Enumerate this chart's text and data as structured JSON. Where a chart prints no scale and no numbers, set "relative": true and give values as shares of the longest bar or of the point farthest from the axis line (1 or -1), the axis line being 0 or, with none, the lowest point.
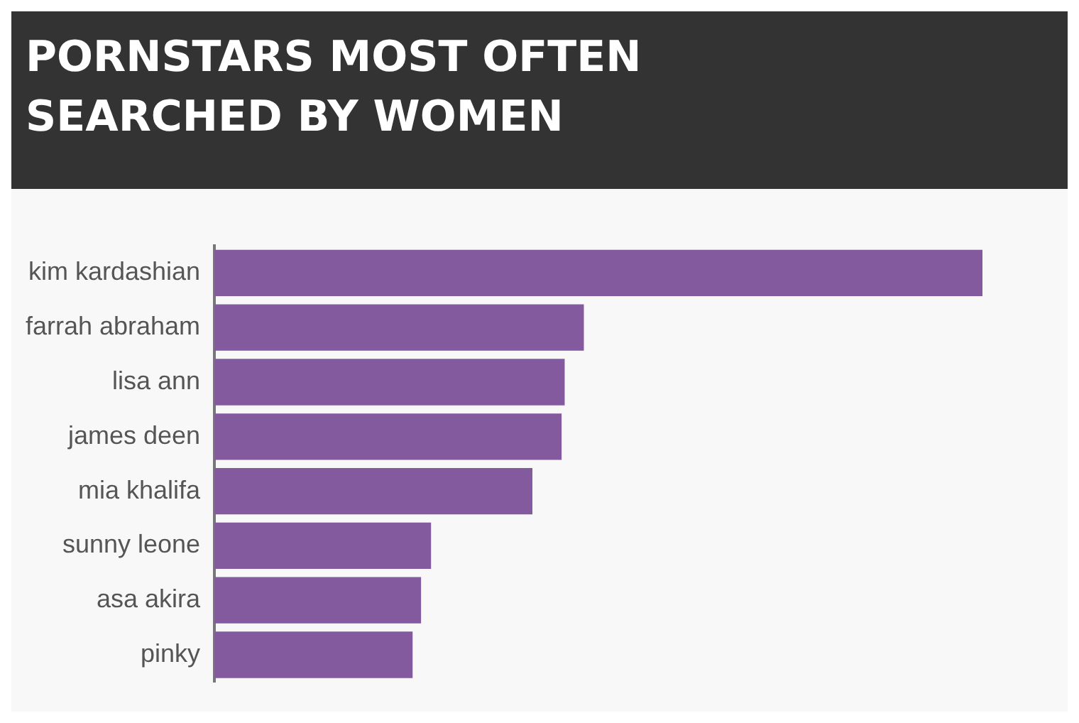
{
  "chart_data": {
    "type": "bar",
    "title": "PORNSTARS MOST OFTEN SEARCHED BY WOMEN",
    "orientation": "horizontal",
    "relative": true,
    "categories": [
      "kim kardashian",
      "farrah abraham",
      "lisa ann",
      "james deen",
      "mia khalifa",
      "sunny leone",
      "asa akira",
      "pinky"
    ],
    "values": [
      1,
      0.481,
      0.456,
      0.452,
      0.414,
      0.282,
      0.269,
      0.258
    ],
    "color": "#845a9f",
    "grid": false,
    "legend": false
  }
}
